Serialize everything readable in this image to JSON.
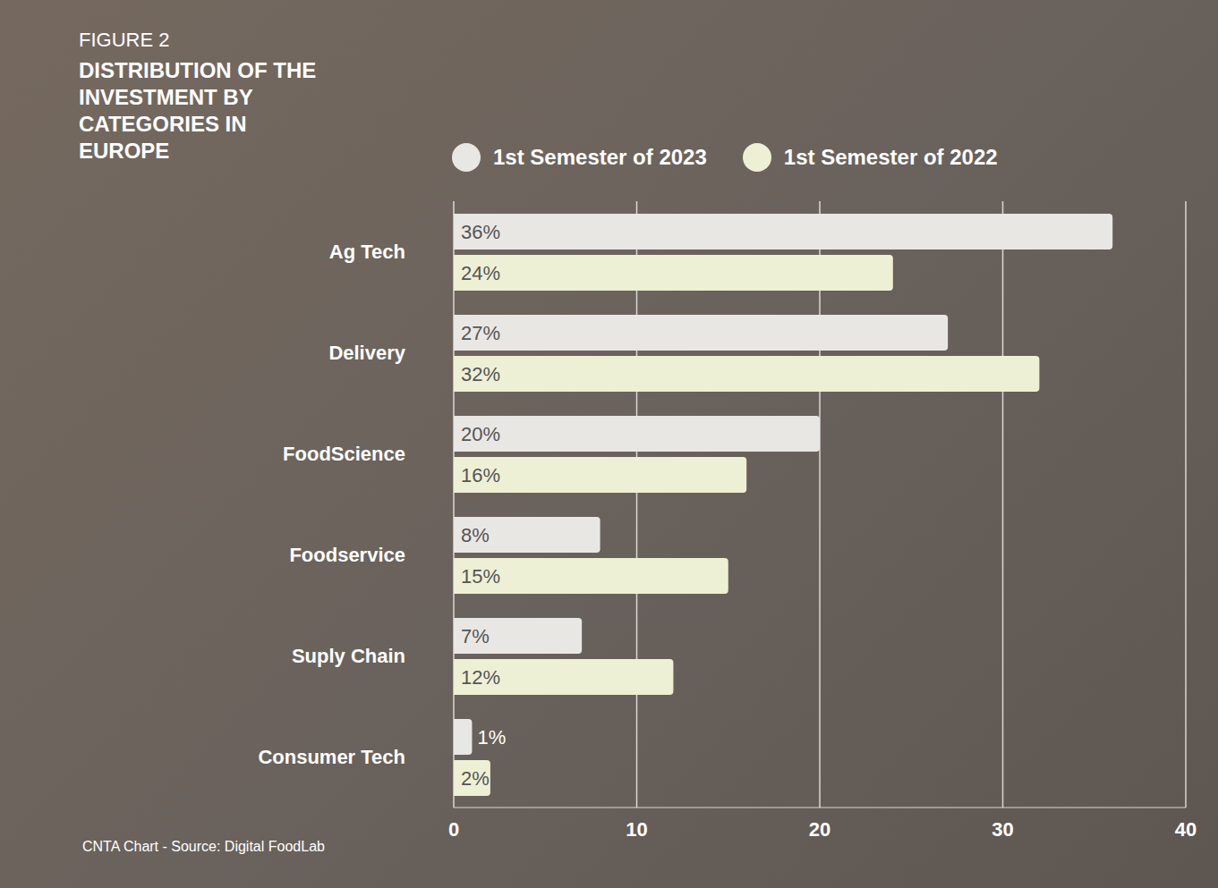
{
  "chart_data": {
    "type": "bar",
    "orientation": "horizontal",
    "subtitle": "FIGURE 2",
    "title": "DISTRIBUTION OF THE INVESTMENT BY CATEGORIES IN EUROPE",
    "annotations": [
      "CNTA Chart - Source: Digital FoodLab"
    ],
    "categories": [
      "Ag Tech",
      "Delivery",
      "FoodScience",
      "Foodservice",
      "Suply Chain",
      "Consumer Tech"
    ],
    "series": [
      {
        "name": "1st Semester of 2023",
        "color": "#e9e7e4",
        "values": [
          36,
          27,
          20,
          8,
          7,
          1
        ],
        "value_labels": [
          "36%",
          "27%",
          "20%",
          "8%",
          "7%",
          "1%"
        ]
      },
      {
        "name": "1st Semester of 2022",
        "color": "#eef0d6",
        "values": [
          24,
          32,
          16,
          15,
          12,
          2
        ],
        "value_labels": [
          "24%",
          "32%",
          "16%",
          "15%",
          "12%",
          "2%"
        ]
      }
    ],
    "xlim": [
      0,
      40
    ],
    "xticks": [
      0,
      10,
      20,
      30,
      40
    ],
    "grid": true,
    "legend": "top",
    "data_labels": true
  }
}
